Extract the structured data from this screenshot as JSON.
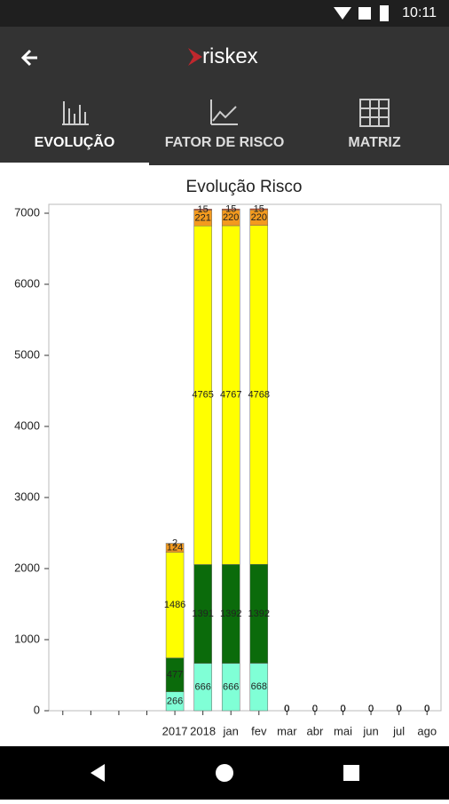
{
  "status": {
    "time": "10:11"
  },
  "header": {
    "logo": "riskex"
  },
  "tabs": [
    "EVOLUÇÃO",
    "FATOR DE RISCO",
    "MATRIZ"
  ],
  "chart_data": {
    "type": "bar",
    "stacked": true,
    "title": "Evolução Risco",
    "categories": [
      null,
      null,
      null,
      null,
      "2017",
      "2018",
      "jan",
      "fev",
      "mar",
      "abr",
      "mai",
      "jun",
      "jul",
      "ago"
    ],
    "series": [
      {
        "color": "#80ffd6",
        "values": [
          null,
          null,
          null,
          null,
          266,
          666,
          666,
          668,
          0,
          0,
          0,
          0,
          0,
          0
        ]
      },
      {
        "color": "#0b6b0b",
        "values": [
          null,
          null,
          null,
          null,
          477,
          1391,
          1392,
          1392,
          0,
          0,
          0,
          0,
          0,
          0
        ]
      },
      {
        "color": "#ffff00",
        "values": [
          null,
          null,
          null,
          null,
          1486,
          4765,
          4767,
          4768,
          0,
          0,
          0,
          0,
          0,
          0
        ]
      },
      {
        "color": "#f39a1e",
        "values": [
          null,
          null,
          null,
          null,
          124,
          221,
          220,
          220,
          0,
          0,
          0,
          0,
          0,
          0
        ]
      },
      {
        "color": "#e0401a",
        "values": [
          null,
          null,
          null,
          null,
          2,
          15,
          15,
          15,
          0,
          0,
          0,
          0,
          0,
          0
        ]
      }
    ],
    "ylim": [
      0,
      7125
    ],
    "yticks": [
      0,
      1000,
      2000,
      3000,
      4000,
      5000,
      6000,
      7000
    ]
  }
}
